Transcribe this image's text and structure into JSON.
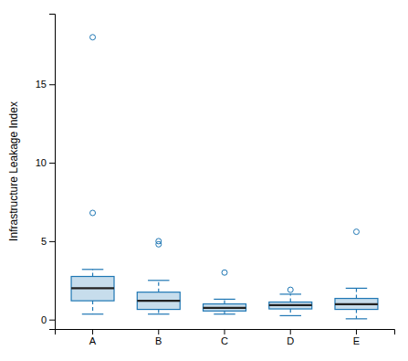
{
  "chart_data": {
    "type": "box",
    "categories": [
      "A",
      "B",
      "C",
      "D",
      "E"
    ],
    "boxes": [
      {
        "q1": 1.2,
        "median": 2.0,
        "q3": 2.75,
        "whisker_low": 0.35,
        "whisker_high": 3.2,
        "outliers": [
          6.8,
          18.0
        ]
      },
      {
        "q1": 0.65,
        "median": 1.2,
        "q3": 1.75,
        "whisker_low": 0.35,
        "whisker_high": 2.5,
        "outliers": [
          4.8,
          5.0
        ]
      },
      {
        "q1": 0.55,
        "median": 0.75,
        "q3": 1.0,
        "whisker_low": 0.35,
        "whisker_high": 1.3,
        "outliers": [
          3.0
        ]
      },
      {
        "q1": 0.68,
        "median": 0.92,
        "q3": 1.12,
        "whisker_low": 0.25,
        "whisker_high": 1.62,
        "outliers": [
          1.9
        ]
      },
      {
        "q1": 0.65,
        "median": 0.98,
        "q3": 1.35,
        "whisker_low": 0.05,
        "whisker_high": 2.0,
        "outliers": [
          5.6
        ]
      }
    ],
    "ylabel": "Infrastructure Leakage Index",
    "ylim": [
      -0.6,
      19.5
    ],
    "yticks": [
      0,
      5,
      10,
      15
    ]
  }
}
